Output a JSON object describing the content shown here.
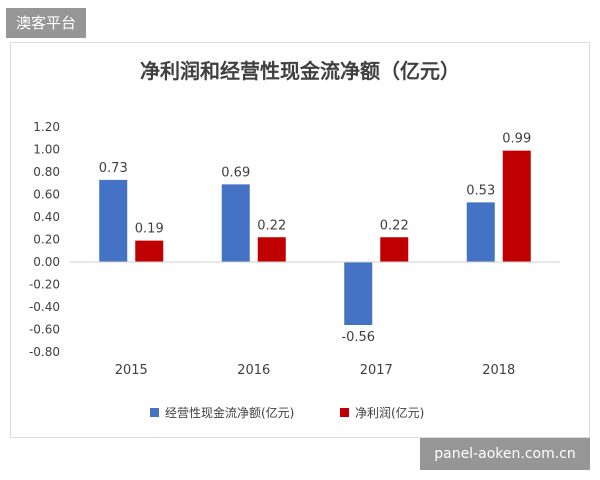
{
  "watermarks": {
    "top_left": "澳客平台",
    "bottom_right": "panel-aoken.com.cn"
  },
  "chart_data": {
    "type": "bar",
    "title": "净利润和经营性现金流净额（亿元）",
    "categories": [
      "2015",
      "2016",
      "2017",
      "2018"
    ],
    "series": [
      {
        "name": "经营性现金流净额(亿元)",
        "color": "#4472c4",
        "values": [
          0.73,
          0.69,
          -0.56,
          0.53
        ]
      },
      {
        "name": "净利润(亿元)",
        "color": "#c00000",
        "values": [
          0.19,
          0.22,
          0.22,
          0.99
        ]
      }
    ],
    "data_labels": [
      [
        "0.73",
        "0.69",
        "-0.56",
        "0.53"
      ],
      [
        "0.19",
        "0.22",
        "0.22",
        "0.99"
      ]
    ],
    "ylim": [
      -0.8,
      1.2
    ],
    "yticks": [
      "1.20",
      "1.00",
      "0.80",
      "0.60",
      "0.40",
      "0.20",
      "0.00",
      "-0.20",
      "-0.40",
      "-0.60",
      "-0.80"
    ],
    "ytick_values": [
      1.2,
      1.0,
      0.8,
      0.6,
      0.4,
      0.2,
      0.0,
      -0.2,
      -0.4,
      -0.6,
      -0.8
    ],
    "legend": "bottom",
    "grid": false,
    "xlabel": "",
    "ylabel": ""
  }
}
